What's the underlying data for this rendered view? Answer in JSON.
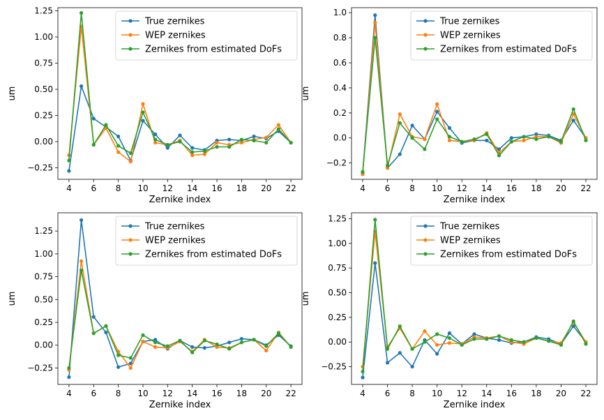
{
  "chart_data": [
    {
      "type": "line",
      "xlabel": "Zernike index",
      "ylabel": "um",
      "x": [
        4,
        5,
        6,
        7,
        8,
        9,
        10,
        11,
        12,
        13,
        14,
        15,
        16,
        17,
        18,
        19,
        20,
        21,
        22
      ],
      "xticks": [
        4,
        6,
        8,
        10,
        12,
        14,
        16,
        18,
        20,
        22
      ],
      "ylim": [
        -0.36,
        1.28
      ],
      "yticks": [
        -0.25,
        0.0,
        0.25,
        0.5,
        0.75,
        1.0,
        1.25
      ],
      "ytick_labels": [
        "−0.25",
        "0.00",
        "0.25",
        "0.50",
        "0.75",
        "1.00",
        "1.25"
      ],
      "legend": "top-right",
      "series": [
        {
          "name": "True zernikes",
          "color": "#1f77b4",
          "values": [
            -0.28,
            0.53,
            0.22,
            0.14,
            0.05,
            -0.18,
            0.2,
            0.07,
            -0.06,
            0.06,
            -0.06,
            -0.08,
            0.01,
            0.02,
            0.01,
            0.05,
            0.03,
            0.1,
            -0.01
          ]
        },
        {
          "name": "WEP zernikes",
          "color": "#ff7f0e",
          "values": [
            -0.13,
            1.1,
            -0.03,
            0.13,
            -0.1,
            -0.19,
            0.36,
            -0.01,
            -0.03,
            0.01,
            -0.13,
            -0.12,
            -0.01,
            -0.03,
            -0.01,
            0.02,
            0.04,
            0.16,
            -0.01
          ]
        },
        {
          "name": "Zernikes from estimated DoFs",
          "color": "#2ca02c",
          "values": [
            -0.18,
            1.23,
            -0.03,
            0.16,
            -0.04,
            -0.11,
            0.28,
            0.02,
            -0.03,
            0.0,
            -0.1,
            -0.09,
            -0.05,
            -0.05,
            0.02,
            0.01,
            -0.01,
            0.12,
            -0.01
          ]
        }
      ]
    },
    {
      "type": "line",
      "xlabel": "Zernike index",
      "ylabel": "um",
      "x": [
        4,
        5,
        6,
        7,
        8,
        9,
        10,
        11,
        12,
        13,
        14,
        15,
        16,
        17,
        18,
        19,
        20,
        21,
        22
      ],
      "xticks": [
        4,
        6,
        8,
        10,
        12,
        14,
        16,
        18,
        20,
        22
      ],
      "ylim": [
        -0.33,
        1.04
      ],
      "yticks": [
        -0.2,
        0.0,
        0.2,
        0.4,
        0.6,
        0.8,
        1.0
      ],
      "ytick_labels": [
        "−0.2",
        "0.0",
        "0.2",
        "0.4",
        "0.6",
        "0.8",
        "1.0"
      ],
      "legend": "top-right",
      "series": [
        {
          "name": "True zernikes",
          "color": "#1f77b4",
          "values": [
            -0.28,
            0.98,
            -0.24,
            -0.13,
            0.1,
            -0.01,
            0.21,
            0.08,
            -0.04,
            -0.02,
            -0.02,
            -0.09,
            0.0,
            0.01,
            0.03,
            0.02,
            -0.02,
            0.14,
            0.0
          ]
        },
        {
          "name": "WEP zernikes",
          "color": "#ff7f0e",
          "values": [
            -0.29,
            0.92,
            -0.24,
            0.19,
            0.01,
            -0.01,
            0.27,
            -0.02,
            -0.03,
            -0.02,
            0.04,
            -0.12,
            -0.03,
            -0.02,
            0.01,
            0.01,
            -0.04,
            0.19,
            0.0
          ]
        },
        {
          "name": "Zernikes from estimated DoFs",
          "color": "#2ca02c",
          "values": [
            -0.27,
            0.8,
            -0.22,
            0.12,
            0.0,
            -0.09,
            0.15,
            0.01,
            -0.03,
            -0.01,
            0.03,
            -0.14,
            -0.03,
            0.01,
            -0.01,
            0.01,
            -0.03,
            0.23,
            -0.02
          ]
        }
      ]
    },
    {
      "type": "line",
      "xlabel": "Zernike index",
      "ylabel": "um",
      "x": [
        4,
        5,
        6,
        7,
        8,
        9,
        10,
        11,
        12,
        13,
        14,
        15,
        16,
        17,
        18,
        19,
        20,
        21,
        22
      ],
      "xticks": [
        4,
        6,
        8,
        10,
        12,
        14,
        16,
        18,
        20,
        22
      ],
      "ylim": [
        -0.43,
        1.45
      ],
      "yticks": [
        -0.25,
        0.0,
        0.25,
        0.5,
        0.75,
        1.0,
        1.25
      ],
      "ytick_labels": [
        "−0.25",
        "0.00",
        "0.25",
        "0.50",
        "0.75",
        "1.00",
        "1.25"
      ],
      "legend": "top-right",
      "series": [
        {
          "name": "True zernikes",
          "color": "#1f77b4",
          "values": [
            -0.35,
            1.37,
            0.31,
            0.14,
            -0.24,
            -0.2,
            0.04,
            0.06,
            -0.04,
            0.05,
            -0.02,
            -0.03,
            -0.01,
            0.03,
            0.07,
            0.06,
            0.0,
            0.11,
            -0.01
          ]
        },
        {
          "name": "WEP zernikes",
          "color": "#ff7f0e",
          "values": [
            -0.27,
            0.92,
            0.13,
            0.21,
            -0.07,
            -0.25,
            0.04,
            -0.02,
            -0.03,
            0.04,
            -0.07,
            0.06,
            -0.02,
            -0.03,
            0.03,
            0.06,
            -0.06,
            0.14,
            -0.02
          ]
        },
        {
          "name": "Zernikes from estimated DoFs",
          "color": "#2ca02c",
          "values": [
            -0.25,
            0.82,
            0.13,
            0.21,
            -0.11,
            -0.14,
            0.11,
            0.03,
            -0.01,
            0.05,
            -0.08,
            0.05,
            0.01,
            -0.04,
            0.03,
            0.06,
            -0.01,
            0.13,
            -0.02
          ]
        }
      ]
    },
    {
      "type": "line",
      "xlabel": "Zernike index",
      "ylabel": "um",
      "x": [
        4,
        5,
        6,
        7,
        8,
        9,
        10,
        11,
        12,
        13,
        14,
        15,
        16,
        17,
        18,
        19,
        20,
        21,
        22
      ],
      "xticks": [
        4,
        6,
        8,
        10,
        12,
        14,
        16,
        18,
        20,
        22
      ],
      "ylim": [
        -0.43,
        1.31
      ],
      "yticks": [
        -0.25,
        0.0,
        0.25,
        0.5,
        0.75,
        1.0,
        1.25
      ],
      "ytick_labels": [
        "−0.25",
        "0.00",
        "0.25",
        "0.50",
        "0.75",
        "1.00",
        "1.25"
      ],
      "legend": "top-right",
      "series": [
        {
          "name": "True zernikes",
          "color": "#1f77b4",
          "values": [
            -0.36,
            0.8,
            -0.21,
            -0.11,
            -0.25,
            0.02,
            -0.12,
            0.09,
            -0.02,
            0.08,
            0.04,
            0.02,
            -0.01,
            0.0,
            0.05,
            0.03,
            -0.02,
            0.16,
            0.0
          ]
        },
        {
          "name": "WEP zernikes",
          "color": "#ff7f0e",
          "values": [
            -0.25,
            1.12,
            -0.05,
            0.14,
            -0.07,
            0.11,
            -0.03,
            -0.01,
            -0.02,
            0.05,
            0.04,
            0.06,
            0.0,
            -0.02,
            0.04,
            0.01,
            -0.01,
            0.2,
            0.0
          ]
        },
        {
          "name": "Zernikes from estimated DoFs",
          "color": "#2ca02c",
          "values": [
            -0.3,
            1.24,
            -0.07,
            0.16,
            -0.07,
            0.0,
            0.08,
            0.04,
            -0.03,
            0.03,
            0.03,
            0.06,
            0.02,
            0.0,
            0.04,
            0.01,
            -0.03,
            0.21,
            -0.02
          ]
        }
      ]
    }
  ]
}
